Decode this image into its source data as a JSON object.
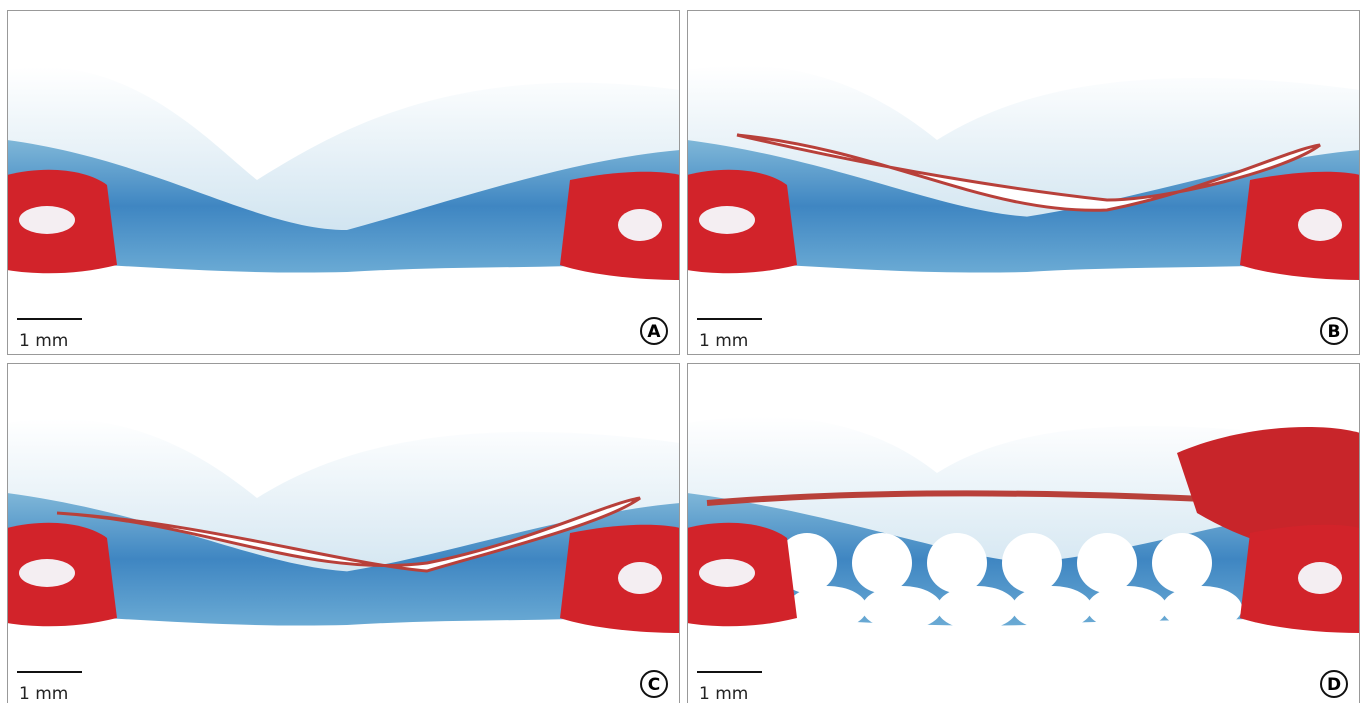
{
  "panels": [
    {
      "label": "A",
      "scale_bar": "1 mm"
    },
    {
      "label": "B",
      "scale_bar": "1 mm"
    },
    {
      "label": "C",
      "scale_bar": "1 mm"
    },
    {
      "label": "D",
      "scale_bar": "1 mm"
    }
  ]
}
